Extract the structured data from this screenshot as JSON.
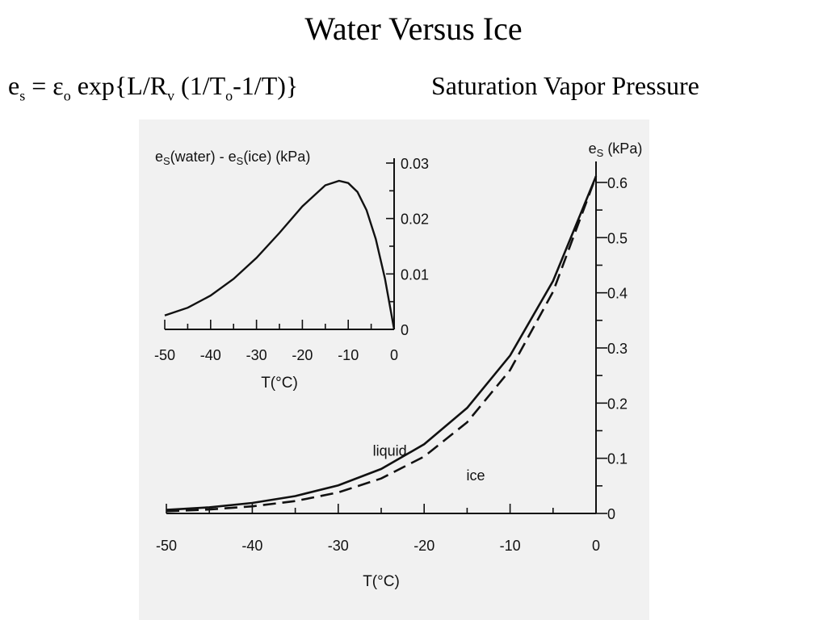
{
  "slide": {
    "title": "Water Versus Ice",
    "formula": {
      "e": "e",
      "e_sub": "s",
      "eq": " = ",
      "eps": "ε",
      "eps_sub": "o",
      "mid": " exp{L/R",
      "rv_sub": "v",
      "mid2": " (1/T",
      "to_sub": "o",
      "tail": "-1/T)}"
    },
    "subtitle": "Saturation Vapor Pressure"
  },
  "colors": {
    "background": "#ffffff",
    "figure_bg": "#f1f1f1",
    "ink": "#111111"
  },
  "chart_data": [
    {
      "type": "line",
      "title": "",
      "xlabel": "T(°C)",
      "ylabel": "es (kPa)",
      "xlim": [
        -50,
        0
      ],
      "ylim": [
        0,
        0.6
      ],
      "xticks": [
        -50,
        -40,
        -30,
        -20,
        -10,
        0
      ],
      "yticks": [
        0,
        0.1,
        0.2,
        0.3,
        0.4,
        0.5,
        0.6
      ],
      "y_axis_side": "right",
      "x": [
        -50,
        -45,
        -40,
        -35,
        -30,
        -25,
        -20,
        -15,
        -10,
        -5,
        0
      ],
      "series": [
        {
          "name": "liquid",
          "style": "solid",
          "values": [
            0.0064,
            0.0111,
            0.019,
            0.0315,
            0.0509,
            0.0807,
            0.1254,
            0.1912,
            0.2863,
            0.4215,
            0.6112
          ]
        },
        {
          "name": "ice",
          "style": "dashed",
          "values": [
            0.0039,
            0.0072,
            0.0129,
            0.0224,
            0.038,
            0.0633,
            0.1032,
            0.1652,
            0.2599,
            0.4018,
            0.6112
          ]
        }
      ],
      "annotations": [
        {
          "text": "liquid",
          "x": -24,
          "y": 0.105
        },
        {
          "text": "ice",
          "x": -14,
          "y": 0.06
        }
      ]
    },
    {
      "type": "line",
      "title": "",
      "xlabel": "T(°C)",
      "ylabel": "es(water) - es(ice)  (kPa)",
      "xlim": [
        -50,
        0
      ],
      "ylim": [
        0,
        0.03
      ],
      "xticks": [
        -50,
        -40,
        -30,
        -20,
        -10,
        0
      ],
      "yticks": [
        0,
        0.01,
        0.02,
        0.03
      ],
      "y_axis_side": "right",
      "x": [
        -50,
        -45,
        -40,
        -35,
        -30,
        -25,
        -20,
        -15,
        -12,
        -10,
        -8,
        -6,
        -4,
        -2,
        0
      ],
      "series": [
        {
          "name": "",
          "style": "solid",
          "values": [
            0.0025,
            0.0039,
            0.0061,
            0.0091,
            0.0129,
            0.0174,
            0.0222,
            0.026,
            0.0268,
            0.0264,
            0.0248,
            0.0215,
            0.0163,
            0.0092,
            0.0
          ]
        }
      ]
    }
  ]
}
